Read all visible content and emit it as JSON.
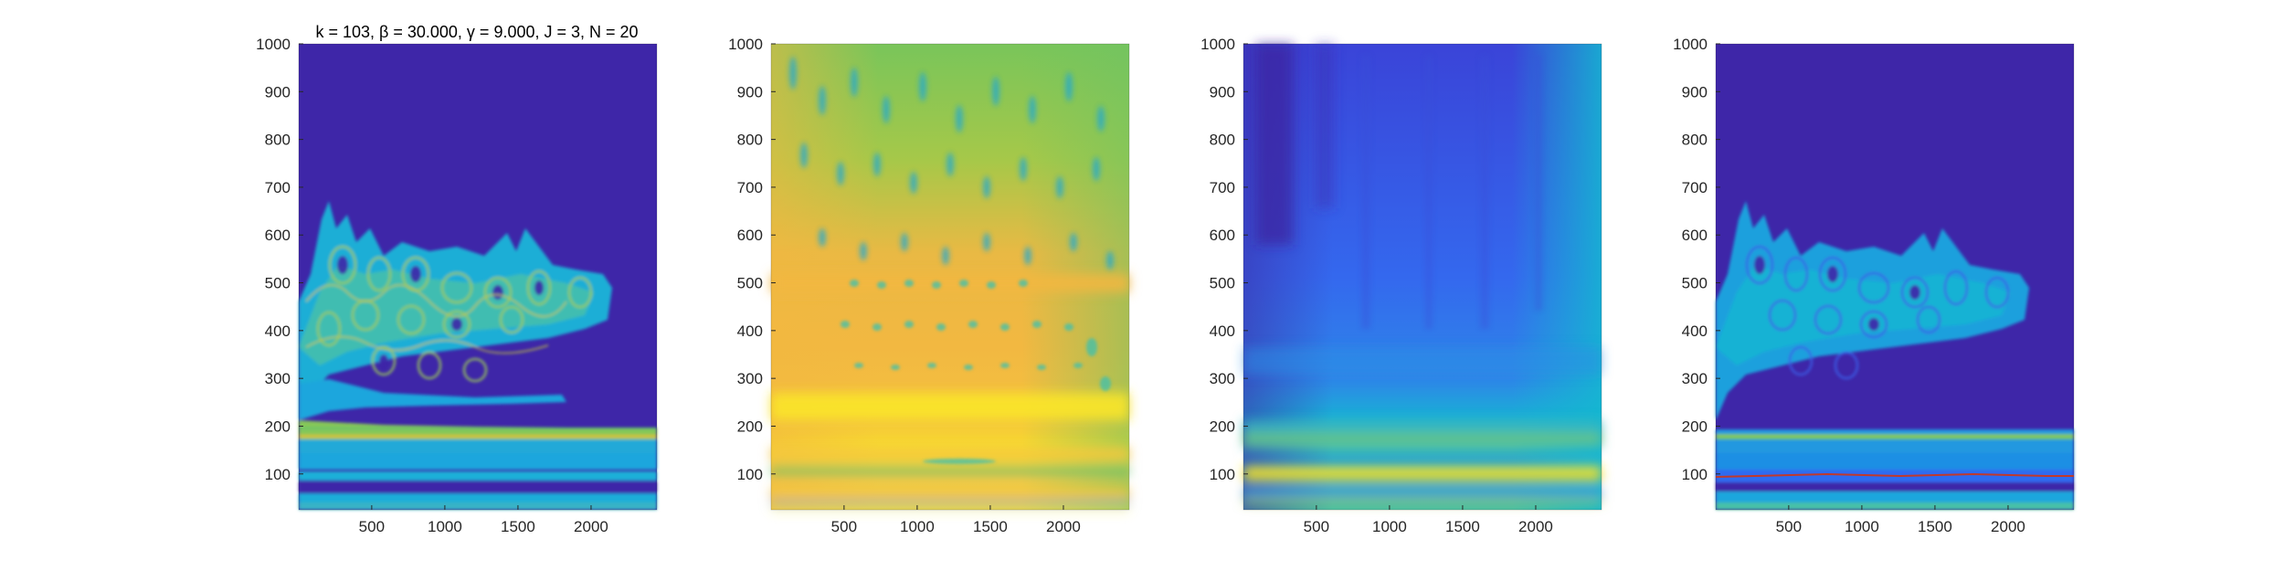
{
  "chart_data": [
    {
      "type": "heatmap",
      "title": "k = 103, β = 30.000, γ = 9.000, J = 3, N = 20",
      "xlabel": "",
      "ylabel": "",
      "xlim": [
        1,
        2450
      ],
      "ylim": [
        25,
        1000
      ],
      "xticks": [
        500,
        1000,
        1500,
        2000
      ],
      "yticks": [
        100,
        200,
        300,
        400,
        500,
        600,
        700,
        800,
        900,
        1000
      ],
      "background": "#3e26a8",
      "description_of_content": ""
    },
    {
      "type": "heatmap",
      "title": "",
      "xlabel": "",
      "ylabel": "",
      "xlim": [
        1,
        2450
      ],
      "ylim": [
        25,
        1000
      ],
      "xticks": [
        500,
        1000,
        1500,
        2000
      ],
      "yticks": [
        100,
        200,
        300,
        400,
        500,
        600,
        700,
        800,
        900,
        1000
      ],
      "background": "#5cc86a"
    },
    {
      "type": "heatmap",
      "title": "",
      "xlabel": "",
      "ylabel": "",
      "xlim": [
        1,
        2450
      ],
      "ylim": [
        25,
        1000
      ],
      "xticks": [
        500,
        1000,
        1500,
        2000
      ],
      "yticks": [
        100,
        200,
        300,
        400,
        500,
        600,
        700,
        800,
        900,
        1000
      ],
      "background": "#3a6cf0"
    },
    {
      "type": "heatmap",
      "title": "",
      "xlabel": "",
      "ylabel": "",
      "xlim": [
        1,
        2450
      ],
      "ylim": [
        25,
        1000
      ],
      "xticks": [
        500,
        1000,
        1500,
        2000
      ],
      "yticks": [
        100,
        200,
        300,
        400,
        500,
        600,
        700,
        800,
        900,
        1000
      ],
      "background": "#3e26a8",
      "ridge_line_color": "#c0392b"
    }
  ],
  "colors": {
    "parula_dark": "#3e26a8",
    "parula_blue": "#2f6bf0",
    "parula_cyan": "#15b6d2",
    "parula_green": "#5cc86a",
    "parula_yellowgreen": "#c2c43a",
    "parula_orange": "#f5b840",
    "parula_yellow": "#f9fb0e",
    "ridge_red": "#c0392b"
  }
}
